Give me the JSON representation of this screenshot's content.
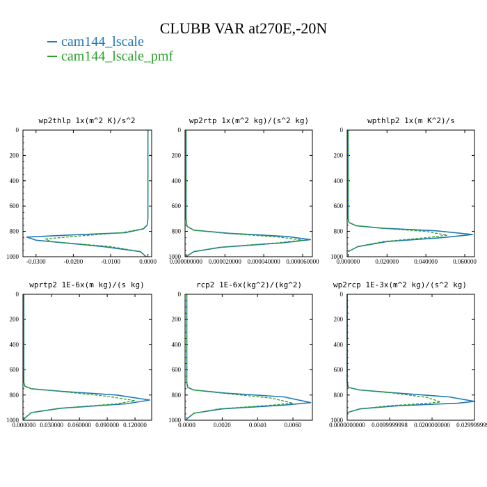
{
  "title": "CLUBB VAR at270E,-20N",
  "legend": [
    {
      "label": "cam144_lscale",
      "color": "#1f77b4"
    },
    {
      "label": "cam144_lscale_pmf",
      "color": "#2ca02c"
    }
  ],
  "chart_data": [
    {
      "type": "line",
      "title": "wp2thlp  1x(m^2 K)/s^2",
      "xticks": [
        "-0.0300",
        "-0.0200",
        "-0.0100",
        "0.0000"
      ],
      "xtick_values": [
        -0.03,
        -0.02,
        -0.01,
        0.0
      ],
      "xlim": [
        -0.0335,
        0.001
      ],
      "yticks": [
        "0",
        "200",
        "400",
        "600",
        "800",
        "1000"
      ],
      "ylim": [
        0,
        1000
      ],
      "y_inverted": true,
      "series": [
        {
          "name": "cam144_lscale",
          "color": "#1f77b4",
          "dash": false,
          "x": [
            0.0,
            0.0,
            0.0,
            -0.0002,
            -0.0012,
            -0.006,
            -0.022,
            -0.0325,
            -0.03,
            -0.012,
            -0.002,
            -0.0005
          ],
          "y": [
            0,
            400,
            700,
            750,
            780,
            810,
            830,
            845,
            870,
            920,
            960,
            1000
          ]
        },
        {
          "name": "cam144_lscale_pmf",
          "color": "#2ca02c",
          "dash": true,
          "x": [
            0.0,
            0.0,
            0.0,
            -0.0002,
            -0.0015,
            -0.007,
            -0.02,
            -0.0275,
            -0.026,
            -0.01,
            -0.002,
            -0.0005
          ],
          "y": [
            0,
            400,
            700,
            750,
            780,
            810,
            840,
            860,
            880,
            920,
            960,
            1000
          ]
        }
      ]
    },
    {
      "type": "line",
      "title": "wp2rtp  1x(m^2 kg)/(s^2 kg)",
      "xticks": [
        "0.000000000",
        "0.000020000",
        "0.000040000",
        "0.000060000"
      ],
      "xtick_values": [
        0.0,
        2e-05,
        4e-05,
        6e-05
      ],
      "xlim": [
        -5e-07,
        6.5e-05
      ],
      "yticks": [
        "0",
        "200",
        "400",
        "600",
        "800",
        "1000"
      ],
      "ylim": [
        0,
        1000
      ],
      "y_inverted": true,
      "series": [
        {
          "name": "cam144_lscale",
          "color": "#1f77b4",
          "dash": false,
          "x": [
            0.0,
            0.0,
            0.0,
            5e-07,
            4e-06,
            2.2e-05,
            5.2e-05,
            6.4e-05,
            5e-05,
            1.8e-05,
            4e-06,
            0.0
          ],
          "y": [
            0,
            400,
            700,
            760,
            790,
            815,
            840,
            865,
            890,
            925,
            960,
            1000
          ]
        },
        {
          "name": "cam144_lscale_pmf",
          "color": "#2ca02c",
          "dash": true,
          "x": [
            0.0,
            0.0,
            0.0,
            5e-07,
            4e-06,
            2e-05,
            4.8e-05,
            6e-05,
            4.7e-05,
            1.7e-05,
            4e-06,
            0.0
          ],
          "y": [
            0,
            400,
            700,
            760,
            790,
            815,
            845,
            870,
            890,
            925,
            960,
            1000
          ]
        }
      ]
    },
    {
      "type": "line",
      "title": "wpthlp2  1x(m K^2)/s",
      "xticks": [
        "0.000000",
        "0.020000",
        "0.040000",
        "0.060000"
      ],
      "xtick_values": [
        0.0,
        0.02,
        0.04,
        0.06
      ],
      "xlim": [
        -0.0005,
        0.065
      ],
      "yticks": [
        "0",
        "200",
        "400",
        "600",
        "800",
        "1000"
      ],
      "ylim": [
        0,
        1000
      ],
      "y_inverted": true,
      "series": [
        {
          "name": "cam144_lscale",
          "color": "#1f77b4",
          "dash": false,
          "x": [
            0.0,
            0.0,
            0.0,
            0.0005,
            0.004,
            0.018,
            0.045,
            0.064,
            0.048,
            0.02,
            0.005,
            0.0
          ],
          "y": [
            0,
            400,
            700,
            730,
            755,
            775,
            795,
            825,
            850,
            880,
            920,
            960
          ]
        },
        {
          "name": "cam144_lscale_pmf",
          "color": "#2ca02c",
          "dash": true,
          "x": [
            0.0,
            0.0,
            0.0,
            0.0005,
            0.004,
            0.017,
            0.04,
            0.051,
            0.04,
            0.018,
            0.005,
            0.0
          ],
          "y": [
            0,
            400,
            700,
            730,
            755,
            775,
            800,
            830,
            850,
            880,
            920,
            960
          ]
        }
      ]
    },
    {
      "type": "line",
      "title": "wprtp2  1E-6x(m kg)/(s kg)",
      "xticks": [
        "0.000000",
        "0.030000",
        "0.060000",
        "0.090000",
        "0.120000"
      ],
      "xtick_values": [
        0.0,
        0.03,
        0.06,
        0.09,
        0.12
      ],
      "xlim": [
        -0.001,
        0.138
      ],
      "yticks": [
        "0",
        "200",
        "400",
        "600",
        "800",
        "1000"
      ],
      "ylim": [
        0,
        1000
      ],
      "y_inverted": true,
      "series": [
        {
          "name": "cam144_lscale",
          "color": "#1f77b4",
          "dash": false,
          "x": [
            0.0,
            0.0,
            0.0,
            0.001,
            0.008,
            0.04,
            0.1,
            0.136,
            0.11,
            0.04,
            0.008,
            0.0
          ],
          "y": [
            0,
            400,
            700,
            730,
            750,
            770,
            800,
            840,
            870,
            905,
            940,
            990
          ]
        },
        {
          "name": "cam144_lscale_pmf",
          "color": "#2ca02c",
          "dash": true,
          "x": [
            0.0,
            0.0,
            0.0,
            0.001,
            0.008,
            0.038,
            0.09,
            0.12,
            0.1,
            0.038,
            0.008,
            0.0
          ],
          "y": [
            0,
            400,
            700,
            730,
            750,
            770,
            810,
            845,
            870,
            905,
            940,
            990
          ]
        }
      ]
    },
    {
      "type": "line",
      "title": "rcp2  1E-6x(kg^2)/(kg^2)",
      "xticks": [
        "0.0000",
        "0.0020",
        "0.0040",
        "0.0060"
      ],
      "xtick_values": [
        0.0,
        0.002,
        0.004,
        0.006
      ],
      "xlim": [
        -0.0001,
        0.0071
      ],
      "yticks": [
        "0",
        "200",
        "400",
        "600",
        "800",
        "1000"
      ],
      "ylim": [
        0,
        1000
      ],
      "y_inverted": true,
      "series": [
        {
          "name": "cam144_lscale",
          "color": "#1f77b4",
          "dash": false,
          "x": [
            0.0,
            0.0,
            0.0,
            5e-05,
            0.0004,
            0.0022,
            0.0055,
            0.007,
            0.0055,
            0.002,
            0.0004,
            0.0
          ],
          "y": [
            0,
            400,
            700,
            740,
            760,
            785,
            815,
            860,
            880,
            910,
            945,
            990
          ]
        },
        {
          "name": "cam144_lscale_pmf",
          "color": "#2ca02c",
          "dash": true,
          "x": [
            0.0,
            0.0,
            0.0,
            5e-05,
            0.0004,
            0.002,
            0.0048,
            0.006,
            0.0048,
            0.0018,
            0.0004,
            0.0
          ],
          "y": [
            0,
            400,
            700,
            740,
            760,
            785,
            825,
            865,
            880,
            910,
            945,
            990
          ]
        }
      ]
    },
    {
      "type": "line",
      "title": "wp2rcp  1E-3x(m^2 kg)/(s^2 kg)",
      "xticks": [
        "0.0000000000",
        "0.0099999998",
        "0.0200000000",
        "0.0299999990"
      ],
      "xtick_values": [
        0.0,
        0.0099999998,
        0.02,
        0.029999999
      ],
      "xlim": [
        0.0,
        0.03
      ],
      "yticks": [
        "0",
        "200",
        "400",
        "600",
        "800",
        "1000"
      ],
      "ylim": [
        0,
        1000
      ],
      "y_inverted": true,
      "series": [
        {
          "name": "cam144_lscale",
          "color": "#1f77b4",
          "dash": false,
          "x": [
            0.0,
            0.0,
            0.0,
            0.0003,
            0.003,
            0.012,
            0.024,
            0.03,
            0.026,
            0.012,
            0.003,
            0.0
          ],
          "y": [
            0,
            400,
            700,
            740,
            760,
            785,
            815,
            850,
            865,
            885,
            910,
            940
          ]
        },
        {
          "name": "cam144_lscale_pmf",
          "color": "#2ca02c",
          "dash": true,
          "x": [
            0.0,
            0.0,
            0.0,
            0.0003,
            0.003,
            0.011,
            0.019,
            0.022,
            0.019,
            0.01,
            0.003,
            0.0
          ],
          "y": [
            0,
            400,
            700,
            740,
            760,
            785,
            820,
            855,
            865,
            885,
            910,
            940
          ]
        }
      ]
    }
  ]
}
